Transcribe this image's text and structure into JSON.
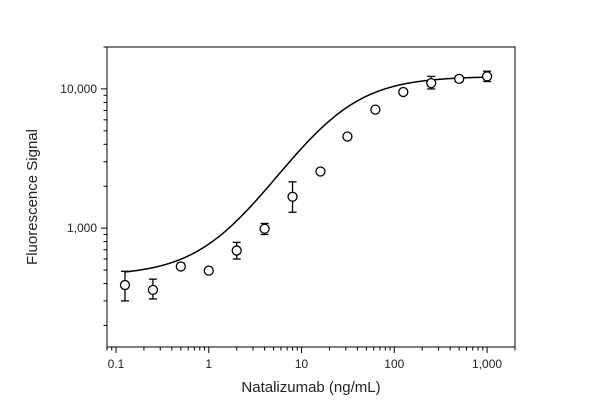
{
  "chart_data": {
    "type": "scatter",
    "xlabel": "Natalizumab (ng/mL)",
    "ylabel": "Fluorescence Signal",
    "x_scale": "log",
    "y_scale": "log",
    "xlim": [
      0.08,
      2000
    ],
    "ylim": [
      140,
      20000
    ],
    "x_ticks": [
      {
        "value": 0.1,
        "label": "0.1"
      },
      {
        "value": 1,
        "label": "1"
      },
      {
        "value": 10,
        "label": "10"
      },
      {
        "value": 100,
        "label": "100"
      },
      {
        "value": 1000,
        "label": "1,000"
      }
    ],
    "y_ticks": [
      {
        "value": 1000,
        "label": "1,000"
      },
      {
        "value": 10000,
        "label": "10,000"
      }
    ],
    "grid": false,
    "legend": "none",
    "points": [
      {
        "x": 0.125,
        "y": 390,
        "err_low": 300,
        "err_high": 490
      },
      {
        "x": 0.25,
        "y": 360,
        "err_low": 310,
        "err_high": 430
      },
      {
        "x": 0.5,
        "y": 530,
        "err_low": 510,
        "err_high": 560
      },
      {
        "x": 1,
        "y": 495,
        "err_low": 480,
        "err_high": 515
      },
      {
        "x": 2,
        "y": 690,
        "err_low": 600,
        "err_high": 790
      },
      {
        "x": 4,
        "y": 990,
        "err_low": 900,
        "err_high": 1080
      },
      {
        "x": 8,
        "y": 1680,
        "err_low": 1300,
        "err_high": 2150
      },
      {
        "x": 16,
        "y": 2550,
        "err_low": 2450,
        "err_high": 2650
      },
      {
        "x": 31.25,
        "y": 4550,
        "err_low": 4400,
        "err_high": 4700
      },
      {
        "x": 62.5,
        "y": 7100,
        "err_low": 6850,
        "err_high": 7400
      },
      {
        "x": 125,
        "y": 9500,
        "err_low": 9100,
        "err_high": 9900
      },
      {
        "x": 250,
        "y": 11000,
        "err_low": 10000,
        "err_high": 12300
      },
      {
        "x": 500,
        "y": 11800,
        "err_low": 11200,
        "err_high": 12400
      },
      {
        "x": 1000,
        "y": 12300,
        "err_low": 11300,
        "err_high": 13400
      }
    ],
    "fit_curve": {
      "model": "4PL",
      "bottom": 455,
      "top": 12300,
      "ec50": 23,
      "hill": 1.15,
      "x_range": [
        0.125,
        1000
      ]
    },
    "colors": {
      "axis": "#000000",
      "marker_fill": "#ffffff",
      "marker_stroke": "#000000",
      "curve": "#000000"
    }
  }
}
